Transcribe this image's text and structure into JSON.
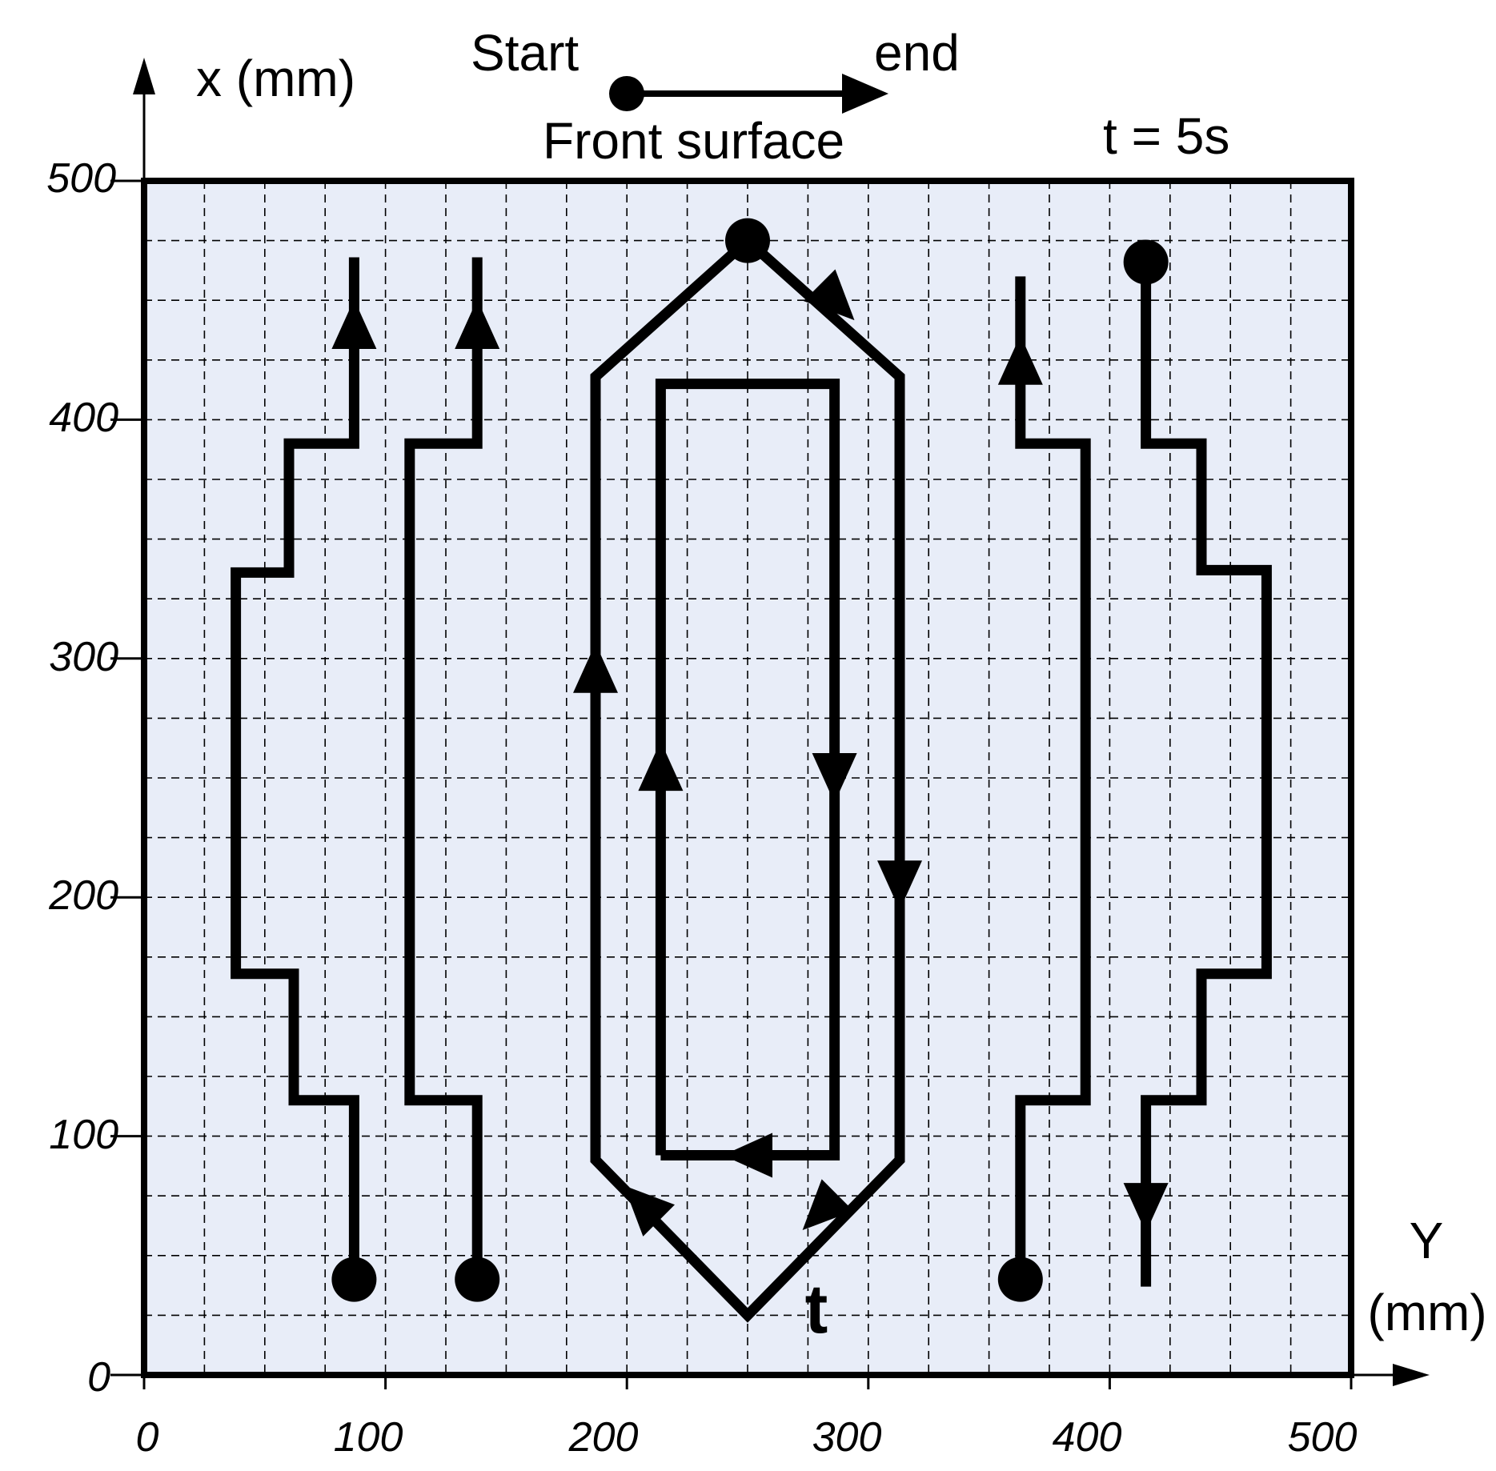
{
  "header": {
    "legend_start": "Start",
    "legend_end": "end",
    "surface_label": "Front surface",
    "time_label": "t = 5s"
  },
  "axes": {
    "x_axis_label": "x (mm)",
    "y_axis_label_line1": "Y",
    "y_axis_label_line2": "(mm)",
    "x_ticks": [
      "0",
      "100",
      "200",
      "300",
      "400",
      "500"
    ],
    "y_ticks": [
      "0",
      "100",
      "200",
      "300",
      "400",
      "500"
    ]
  },
  "annotations": {
    "time_arrow_label": "t"
  },
  "colors": {
    "plate_fill": "#e8edf8",
    "stroke": "#000000"
  },
  "paths": [
    {
      "name": "path-1",
      "points": [
        [
          87,
          40
        ],
        [
          87,
          115
        ],
        [
          62,
          115
        ],
        [
          62,
          168
        ],
        [
          38,
          168
        ],
        [
          38,
          336
        ],
        [
          60,
          336
        ],
        [
          60,
          390
        ],
        [
          87,
          390
        ],
        [
          87,
          468
        ]
      ],
      "arrows": [
        [
          87,
          440,
          "up"
        ]
      ],
      "start_dot": [
        87,
        40
      ]
    },
    {
      "name": "path-2",
      "points": [
        [
          138,
          40
        ],
        [
          138,
          115
        ],
        [
          110,
          115
        ],
        [
          110,
          390
        ],
        [
          138,
          390
        ],
        [
          138,
          468
        ]
      ],
      "arrows": [
        [
          138,
          440,
          "up"
        ]
      ],
      "start_dot": [
        138,
        40
      ]
    },
    {
      "name": "path-3",
      "points": [
        [
          250,
          475
        ],
        [
          313,
          418
        ],
        [
          313,
          90
        ],
        [
          250,
          25
        ],
        [
          187,
          90
        ],
        [
          187,
          418
        ],
        [
          250,
          475
        ]
      ],
      "arrows": [
        [
          287,
          449,
          "down-right"
        ],
        [
          313,
          205,
          "down"
        ],
        [
          280,
          68,
          "down-left"
        ],
        [
          206,
          72,
          "up-left"
        ],
        [
          187,
          296,
          "up"
        ]
      ],
      "start_dot": [
        250,
        475
      ]
    },
    {
      "name": "path-4",
      "points": [
        [
          214,
          92
        ],
        [
          286,
          92
        ],
        [
          286,
          415
        ],
        [
          214,
          415
        ],
        [
          214,
          92
        ]
      ],
      "arrows": [
        [
          286,
          250,
          "down"
        ],
        [
          250,
          92,
          "left"
        ],
        [
          214,
          255,
          "up"
        ]
      ],
      "start_dot": null
    },
    {
      "name": "path-5",
      "points": [
        [
          363,
          40
        ],
        [
          363,
          115
        ],
        [
          390,
          115
        ],
        [
          390,
          390
        ],
        [
          363,
          390
        ],
        [
          363,
          460
        ]
      ],
      "arrows": [
        [
          363,
          425,
          "up"
        ]
      ],
      "start_dot": [
        363,
        40
      ]
    },
    {
      "name": "path-6",
      "points": [
        [
          415,
          466
        ],
        [
          415,
          390
        ],
        [
          438,
          390
        ],
        [
          438,
          337
        ],
        [
          465,
          337
        ],
        [
          465,
          168
        ],
        [
          438,
          168
        ],
        [
          438,
          115
        ],
        [
          415,
          115
        ],
        [
          415,
          37
        ]
      ],
      "arrows": [
        [
          415,
          70,
          "down"
        ]
      ],
      "start_dot": [
        415,
        466
      ]
    }
  ]
}
